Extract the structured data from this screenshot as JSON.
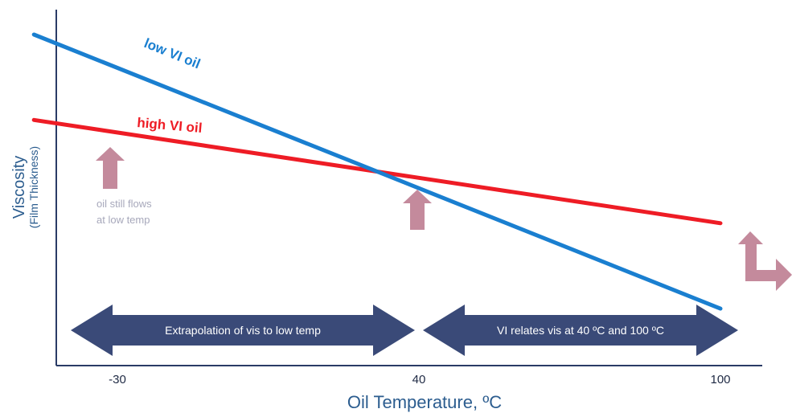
{
  "chart_data": {
    "type": "line",
    "xlabel": "Oil Temperature, ºC",
    "ylabel": "Viscosity",
    "ylabel_sub": "(Film Thickness)",
    "x_ticks": [
      "-30",
      "40",
      "100"
    ],
    "x_positions": [
      -30,
      40,
      100
    ],
    "series": [
      {
        "name": "low VI oil",
        "color": "#1a7fd0",
        "x": [
          -48,
          40,
          100
        ],
        "y": [
          0.93,
          0.53,
          0.16
        ]
      },
      {
        "name": "high VI oil",
        "color": "#ee1c25",
        "x": [
          -48,
          40,
          100
        ],
        "y": [
          0.69,
          0.53,
          0.4
        ]
      }
    ],
    "annotations": {
      "note_line1": "oil still flows",
      "note_line2": "at low temp",
      "left_arrow_text": "Extrapolation of vis to low temp",
      "right_arrow_text": "VI relates vis at 40 ºC and 100 ºC"
    },
    "colors": {
      "axis": "#2a3b66",
      "arrow_fill": "#3a4a78",
      "up_arrow": "#c48a9c"
    }
  }
}
